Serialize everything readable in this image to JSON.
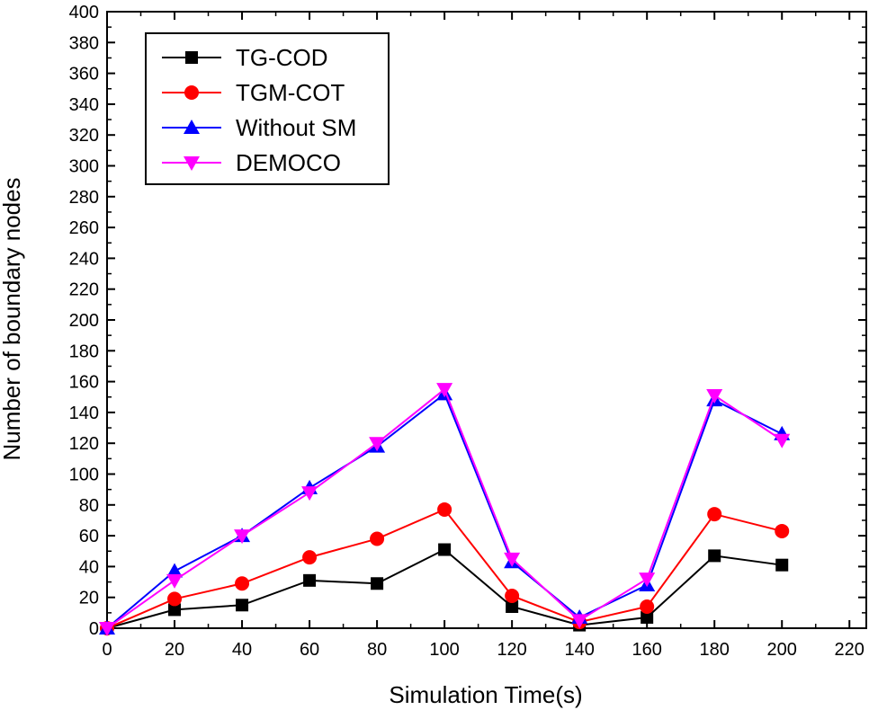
{
  "chart_data": {
    "type": "line",
    "xlabel": "Simulation Time(s)",
    "ylabel": "Number of boundary nodes",
    "xlim": [
      0,
      225
    ],
    "ylim": [
      0,
      400
    ],
    "x_ticks": [
      "0",
      "20",
      "40",
      "60",
      "80",
      "100",
      "120",
      "140",
      "160",
      "180",
      "200",
      "220"
    ],
    "y_ticks": [
      "0",
      "20",
      "40",
      "60",
      "80",
      "100",
      "120",
      "140",
      "160",
      "180",
      "200",
      "220",
      "240",
      "260",
      "280",
      "300",
      "320",
      "340",
      "360",
      "380",
      "400"
    ],
    "x": [
      0,
      20,
      40,
      60,
      80,
      100,
      120,
      140,
      160,
      180,
      200
    ],
    "legend_position": "top-left",
    "series": [
      {
        "name": "TG-COD",
        "color": "#000000",
        "marker": "square",
        "values": [
          0,
          12,
          15,
          31,
          29,
          51,
          14,
          2,
          7,
          47,
          41
        ]
      },
      {
        "name": "TGM-COT",
        "color": "#ff0000",
        "marker": "circle",
        "values": [
          0,
          19,
          29,
          46,
          58,
          77,
          21,
          4,
          14,
          74,
          63
        ]
      },
      {
        "name": "Without SM",
        "color": "#0000ff",
        "marker": "triangle-up",
        "values": [
          0,
          37,
          60,
          91,
          118,
          152,
          43,
          7,
          28,
          148,
          126
        ]
      },
      {
        "name": "DEMOCO",
        "color": "#ff00ff",
        "marker": "triangle-down",
        "values": [
          0,
          31,
          60,
          88,
          120,
          155,
          45,
          5,
          32,
          151,
          122
        ]
      }
    ]
  }
}
